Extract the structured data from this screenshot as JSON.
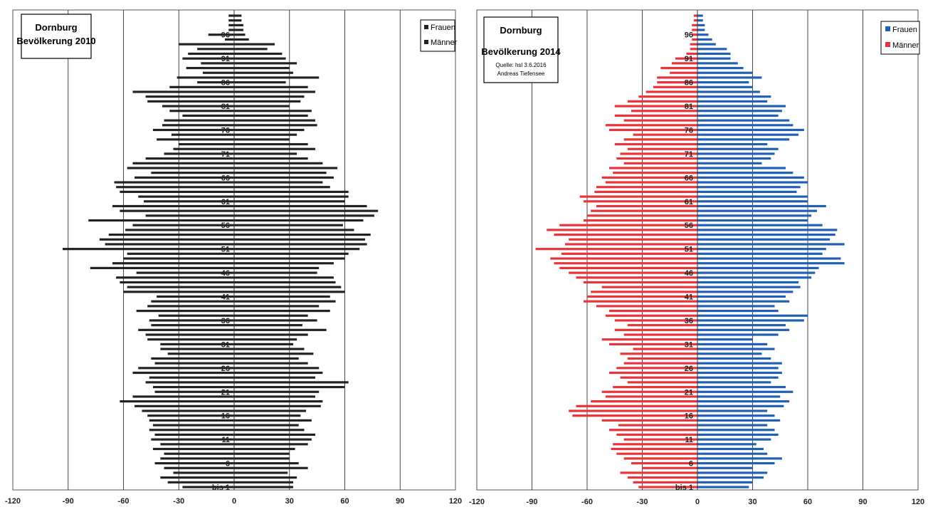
{
  "chart_data": [
    {
      "type": "bar",
      "orientation": "horizontal",
      "layout": "population-pyramid",
      "title": [
        "Dornburg",
        "Bevölkerung 2010"
      ],
      "notes": [],
      "legend": [
        "Frauen",
        "Männer"
      ],
      "legend_placement": "top-right",
      "colors": {
        "Frauen": "#222222",
        "Männer": "#222222"
      },
      "xlim": [
        -120,
        120
      ],
      "xticks": [
        -120,
        -90,
        -60,
        -30,
        0,
        30,
        60,
        90,
        120
      ],
      "grid": "vertical",
      "age_labels": [
        {
          "age": 96,
          "label": "96"
        },
        {
          "age": 91,
          "label": "91"
        },
        {
          "age": 86,
          "label": "86"
        },
        {
          "age": 81,
          "label": "81"
        },
        {
          "age": 76,
          "label": "76"
        },
        {
          "age": 71,
          "label": "71"
        },
        {
          "age": 66,
          "label": "66"
        },
        {
          "age": 61,
          "label": "61"
        },
        {
          "age": 56,
          "label": "56"
        },
        {
          "age": 51,
          "label": "51"
        },
        {
          "age": 46,
          "label": "46"
        },
        {
          "age": 41,
          "label": "41"
        },
        {
          "age": 36,
          "label": "36"
        },
        {
          "age": 31,
          "label": "31"
        },
        {
          "age": 26,
          "label": "26"
        },
        {
          "age": 21,
          "label": "21"
        },
        {
          "age": 16,
          "label": "16"
        },
        {
          "age": 11,
          "label": "11"
        },
        {
          "age": 6,
          "label": "6"
        },
        {
          "age": 1,
          "label": "bis 1"
        }
      ],
      "ages": [
        1,
        2,
        3,
        4,
        5,
        6,
        7,
        8,
        9,
        10,
        11,
        12,
        13,
        14,
        15,
        16,
        17,
        18,
        19,
        20,
        21,
        22,
        23,
        24,
        25,
        26,
        27,
        28,
        29,
        30,
        31,
        32,
        33,
        34,
        35,
        36,
        37,
        38,
        39,
        40,
        41,
        42,
        43,
        44,
        45,
        46,
        47,
        48,
        49,
        50,
        51,
        52,
        53,
        54,
        55,
        56,
        57,
        58,
        59,
        60,
        61,
        62,
        63,
        64,
        65,
        66,
        67,
        68,
        69,
        70,
        71,
        72,
        73,
        74,
        75,
        76,
        77,
        78,
        79,
        80,
        81,
        82,
        83,
        84,
        85,
        86,
        87,
        88,
        89,
        90,
        91,
        92,
        93,
        94,
        95,
        96,
        97,
        98,
        99,
        100
      ],
      "series": [
        {
          "name": "Männer",
          "side": "left",
          "values": [
            28,
            36,
            40,
            33,
            38,
            43,
            40,
            38,
            44,
            40,
            45,
            43,
            46,
            44,
            46,
            47,
            50,
            54,
            62,
            55,
            43,
            44,
            48,
            46,
            55,
            52,
            43,
            45,
            36,
            40,
            40,
            47,
            48,
            52,
            45,
            46,
            41,
            53,
            47,
            45,
            42,
            60,
            58,
            62,
            64,
            53,
            78,
            66,
            60,
            58,
            93,
            70,
            73,
            68,
            59,
            55,
            79,
            48,
            62,
            66,
            49,
            52,
            62,
            64,
            65,
            54,
            45,
            58,
            55,
            48,
            38,
            33,
            30,
            42,
            34,
            44,
            39,
            38,
            28,
            35,
            39,
            47,
            48,
            55,
            35,
            20,
            31,
            17,
            26,
            18,
            28,
            25,
            20,
            30,
            5,
            14,
            3,
            3,
            3,
            3
          ]
        },
        {
          "name": "Frauen",
          "side": "right",
          "values": [
            32,
            32,
            34,
            29,
            40,
            35,
            30,
            30,
            33,
            40,
            42,
            44,
            38,
            35,
            42,
            36,
            39,
            47,
            48,
            44,
            46,
            60,
            62,
            44,
            48,
            46,
            40,
            35,
            43,
            38,
            32,
            34,
            40,
            50,
            37,
            45,
            40,
            52,
            46,
            55,
            52,
            60,
            58,
            55,
            54,
            45,
            46,
            54,
            60,
            62,
            68,
            72,
            71,
            74,
            65,
            59,
            70,
            76,
            78,
            72,
            60,
            62,
            62,
            52,
            48,
            54,
            50,
            56,
            48,
            40,
            34,
            44,
            40,
            30,
            34,
            38,
            45,
            44,
            40,
            42,
            30,
            36,
            38,
            44,
            40,
            28,
            46,
            32,
            30,
            34,
            28,
            26,
            18,
            22,
            8,
            6,
            5,
            5,
            4,
            4
          ]
        }
      ]
    },
    {
      "type": "bar",
      "orientation": "horizontal",
      "layout": "population-pyramid",
      "title": [
        "Dornburg",
        "Bevölkerung 2014"
      ],
      "notes": [
        "Quelle: hsl   3.6.2016",
        "Andreas Tiefensee"
      ],
      "legend": [
        "Frauen",
        "Männer"
      ],
      "legend_placement": "top-right",
      "colors": {
        "Frauen": "#1f5fb4",
        "Männer": "#e8343a"
      },
      "xlim": [
        -120,
        120
      ],
      "xticks": [
        -120,
        -90,
        -60,
        -30,
        0,
        30,
        60,
        90,
        120
      ],
      "grid": "vertical",
      "age_labels": [
        {
          "age": 96,
          "label": "96"
        },
        {
          "age": 91,
          "label": "91"
        },
        {
          "age": 86,
          "label": "86"
        },
        {
          "age": 81,
          "label": "81"
        },
        {
          "age": 76,
          "label": "76"
        },
        {
          "age": 71,
          "label": "71"
        },
        {
          "age": 66,
          "label": "66"
        },
        {
          "age": 61,
          "label": "61"
        },
        {
          "age": 56,
          "label": "56"
        },
        {
          "age": 51,
          "label": "51"
        },
        {
          "age": 46,
          "label": "46"
        },
        {
          "age": 41,
          "label": "41"
        },
        {
          "age": 36,
          "label": "36"
        },
        {
          "age": 31,
          "label": "31"
        },
        {
          "age": 26,
          "label": "26"
        },
        {
          "age": 21,
          "label": "21"
        },
        {
          "age": 16,
          "label": "16"
        },
        {
          "age": 11,
          "label": "11"
        },
        {
          "age": 6,
          "label": "6"
        },
        {
          "age": 1,
          "label": "bis 1"
        }
      ],
      "ages": [
        1,
        2,
        3,
        4,
        5,
        6,
        7,
        8,
        9,
        10,
        11,
        12,
        13,
        14,
        15,
        16,
        17,
        18,
        19,
        20,
        21,
        22,
        23,
        24,
        25,
        26,
        27,
        28,
        29,
        30,
        31,
        32,
        33,
        34,
        35,
        36,
        37,
        38,
        39,
        40,
        41,
        42,
        43,
        44,
        45,
        46,
        47,
        48,
        49,
        50,
        51,
        52,
        53,
        54,
        55,
        56,
        57,
        58,
        59,
        60,
        61,
        62,
        63,
        64,
        65,
        66,
        67,
        68,
        69,
        70,
        71,
        72,
        73,
        74,
        75,
        76,
        77,
        78,
        79,
        80,
        81,
        82,
        83,
        84,
        85,
        86,
        87,
        88,
        89,
        90,
        91,
        92,
        93,
        94,
        95,
        96,
        97,
        98,
        99,
        100
      ],
      "series": [
        {
          "name": "Männer",
          "side": "left",
          "values": [
            32,
            35,
            38,
            42,
            30,
            36,
            40,
            44,
            47,
            46,
            40,
            44,
            48,
            43,
            52,
            68,
            70,
            66,
            58,
            50,
            52,
            46,
            38,
            42,
            48,
            44,
            40,
            38,
            42,
            35,
            48,
            52,
            40,
            45,
            38,
            45,
            50,
            48,
            55,
            62,
            60,
            58,
            52,
            62,
            66,
            70,
            75,
            78,
            80,
            74,
            88,
            72,
            70,
            78,
            82,
            75,
            62,
            60,
            58,
            55,
            62,
            64,
            56,
            55,
            50,
            52,
            46,
            48,
            40,
            44,
            42,
            38,
            45,
            40,
            35,
            48,
            50,
            40,
            45,
            36,
            45,
            38,
            32,
            28,
            24,
            22,
            22,
            15,
            20,
            14,
            12,
            6,
            4,
            4,
            3,
            3,
            3,
            3,
            2,
            2
          ]
        },
        {
          "name": "Frauen",
          "side": "right",
          "values": [
            28,
            30,
            36,
            38,
            30,
            42,
            46,
            38,
            36,
            32,
            40,
            44,
            42,
            38,
            45,
            42,
            38,
            47,
            50,
            45,
            52,
            48,
            40,
            44,
            46,
            44,
            46,
            40,
            35,
            42,
            38,
            30,
            44,
            50,
            48,
            58,
            60,
            44,
            42,
            50,
            48,
            52,
            56,
            55,
            62,
            64,
            66,
            80,
            78,
            68,
            70,
            80,
            72,
            75,
            76,
            68,
            60,
            62,
            65,
            70,
            60,
            60,
            54,
            56,
            60,
            58,
            52,
            48,
            35,
            40,
            42,
            44,
            38,
            50,
            55,
            58,
            52,
            50,
            44,
            46,
            48,
            38,
            40,
            34,
            30,
            28,
            35,
            30,
            25,
            22,
            18,
            18,
            16,
            10,
            8,
            6,
            4,
            4,
            3,
            3
          ]
        }
      ]
    }
  ]
}
